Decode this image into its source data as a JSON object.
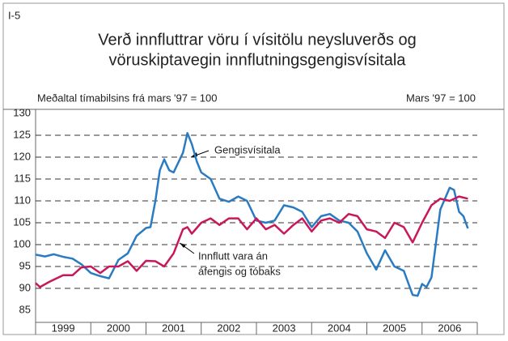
{
  "chart_data": {
    "type": "line",
    "panel_label": "I-5",
    "title": [
      "Verð innfluttrar vöru í vísitölu neysluverðs og",
      "vöruskiptavegin innflutningsgengisvísitala"
    ],
    "left_note": "Meðaltal tímabilsins frá mars '97 = 100",
    "right_note": "Mars '97 = 100",
    "annotations": [
      "Gengisvísitala",
      "Innflutt vara án",
      "áfengis og tóbaks"
    ],
    "categories": [
      "1999",
      "2000",
      "2001",
      "2002",
      "2003",
      "2004",
      "2005",
      "2006"
    ],
    "xlim": [
      1999,
      2007
    ],
    "xticks": [
      1999,
      2000,
      2001,
      2002,
      2003,
      2004,
      2005,
      2006,
      2007
    ],
    "ylim": [
      85,
      130
    ],
    "yticks": [
      85,
      90,
      95,
      100,
      105,
      110,
      115,
      120,
      125,
      130
    ],
    "grid": true,
    "series": [
      {
        "name": "Gengisvísitala",
        "color": "#2b7bc2",
        "x": [
          1999.0,
          1999.17,
          1999.33,
          1999.5,
          1999.67,
          1999.83,
          2000.0,
          2000.17,
          2000.33,
          2000.5,
          2000.67,
          2000.83,
          2001.0,
          2001.08,
          2001.17,
          2001.25,
          2001.33,
          2001.42,
          2001.5,
          2001.67,
          2001.75,
          2001.83,
          2001.92,
          2002.0,
          2002.17,
          2002.33,
          2002.5,
          2002.67,
          2002.83,
          2003.0,
          2003.17,
          2003.33,
          2003.5,
          2003.67,
          2003.83,
          2004.0,
          2004.17,
          2004.33,
          2004.5,
          2004.67,
          2004.83,
          2005.0,
          2005.17,
          2005.33,
          2005.5,
          2005.67,
          2005.83,
          2005.92,
          2006.0,
          2006.08,
          2006.17,
          2006.33,
          2006.5,
          2006.58,
          2006.67,
          2006.75,
          2006.83
        ],
        "values": [
          97.7,
          97.3,
          97.8,
          97.2,
          96.8,
          95.5,
          93.5,
          92.8,
          92.3,
          96.5,
          98,
          102,
          103.8,
          104,
          110,
          117,
          119.5,
          117,
          116.5,
          121,
          125.5,
          123,
          119,
          116.5,
          115,
          110.5,
          109.8,
          111,
          110,
          105.5,
          105,
          105.5,
          109,
          108.5,
          107.5,
          104,
          106.5,
          107,
          105.5,
          105,
          103,
          98,
          94.3,
          98.7,
          95,
          94,
          88.5,
          88.3,
          91,
          90.3,
          92.5,
          108,
          113,
          112.5,
          107.5,
          106.5,
          103.7
        ]
      },
      {
        "name": "Innflutt vara án áfengis og tóbaks",
        "color": "#c8185a",
        "x": [
          1999.0,
          1999.08,
          1999.25,
          1999.5,
          1999.67,
          1999.83,
          2000.0,
          2000.17,
          2000.33,
          2000.5,
          2000.67,
          2000.83,
          2001.0,
          2001.17,
          2001.33,
          2001.5,
          2001.67,
          2001.75,
          2001.83,
          2002.0,
          2002.17,
          2002.33,
          2002.5,
          2002.67,
          2002.83,
          2003.0,
          2003.17,
          2003.33,
          2003.5,
          2003.67,
          2003.83,
          2004.0,
          2004.17,
          2004.33,
          2004.5,
          2004.67,
          2004.83,
          2005.0,
          2005.17,
          2005.33,
          2005.5,
          2005.67,
          2005.83,
          2006.0,
          2006.17,
          2006.33,
          2006.5,
          2006.67,
          2006.83
        ],
        "values": [
          91.2,
          90.3,
          91.5,
          93,
          93,
          94.8,
          95,
          93.5,
          95,
          95,
          96.2,
          94,
          96.3,
          96.2,
          95,
          98,
          103.5,
          104,
          102.5,
          105,
          106,
          104.5,
          106,
          106,
          103.5,
          106,
          103.5,
          104.5,
          102.5,
          104.5,
          106,
          103,
          105.5,
          106,
          105,
          107,
          106.5,
          103.5,
          103,
          101.5,
          105,
          104,
          100.5,
          105,
          109,
          110.5,
          110,
          111,
          110.5
        ]
      }
    ]
  }
}
